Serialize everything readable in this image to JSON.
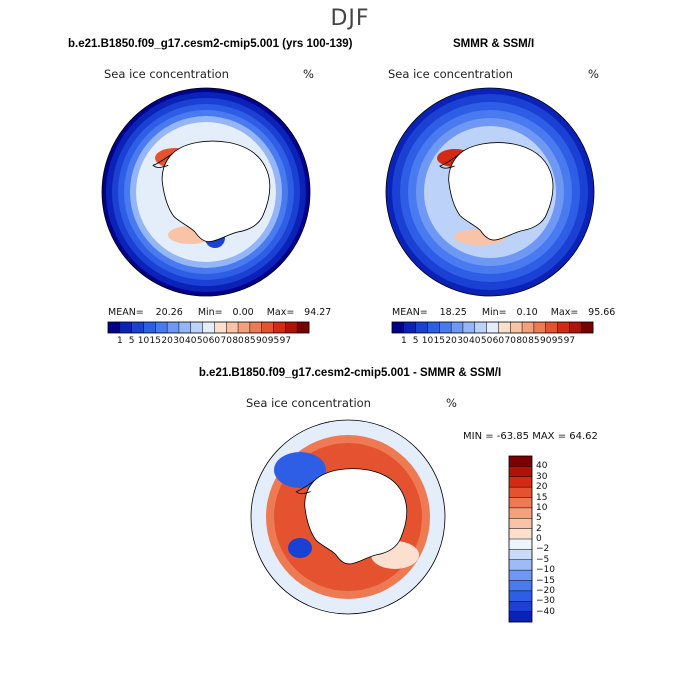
{
  "season": "DJF",
  "panels": [
    {
      "title": "b.e21.B1850.f09_g17.cesm2-cmip5.001 (yrs 100-139)",
      "variable": "Sea ice concentration",
      "units": "%",
      "stats": {
        "mean_label": "MEAN=",
        "mean": "20.26",
        "min_label": "Min=",
        "min": "0.00",
        "max_label": "Max=",
        "max": "94.27"
      }
    },
    {
      "title": "SMMR & SSM/I",
      "variable": "Sea ice concentration",
      "units": "%",
      "stats": {
        "mean_label": "MEAN=",
        "mean": "18.25",
        "min_label": "Min=",
        "min": "0.10",
        "max_label": "Max=",
        "max": "95.66"
      }
    },
    {
      "title": "b.e21.B1850.f09_g17.cesm2-cmip5.001 - SMMR & SSM/I",
      "variable": "Sea ice concentration",
      "units": "%",
      "stats_text": "MIN = -63.85 MAX =  64.62"
    }
  ],
  "concentration_colorbar": {
    "ticks": [
      "1",
      "5",
      "10",
      "15",
      "20",
      "30",
      "40",
      "50",
      "60",
      "70",
      "80",
      "85",
      "90",
      "95",
      "97"
    ],
    "colors": [
      "#00008b",
      "#0a22b8",
      "#1a40d4",
      "#2f5ee6",
      "#4a7af0",
      "#6e98f4",
      "#95b6f6",
      "#bcd2f8",
      "#e4eefa",
      "#fbe0d0",
      "#f8c3a6",
      "#f4a07c",
      "#ee7a54",
      "#e55230",
      "#d42a14",
      "#b01208",
      "#7a0000"
    ]
  },
  "difference_colorbar": {
    "labels": [
      "40",
      "30",
      "20",
      "15",
      "10",
      "5",
      "2",
      "0",
      "−2",
      "−5",
      "−10",
      "−15",
      "−20",
      "−30",
      "−40"
    ],
    "colors": [
      "#7a0000",
      "#b01208",
      "#d42a14",
      "#e55230",
      "#ee7a54",
      "#f4a07c",
      "#f8c3a6",
      "#fbe0d0",
      "#eef4fb",
      "#c8dcf8",
      "#9dbcf6",
      "#6e98f4",
      "#4a7af0",
      "#2f5ee6",
      "#1a40d4",
      "#0a22b8"
    ]
  }
}
